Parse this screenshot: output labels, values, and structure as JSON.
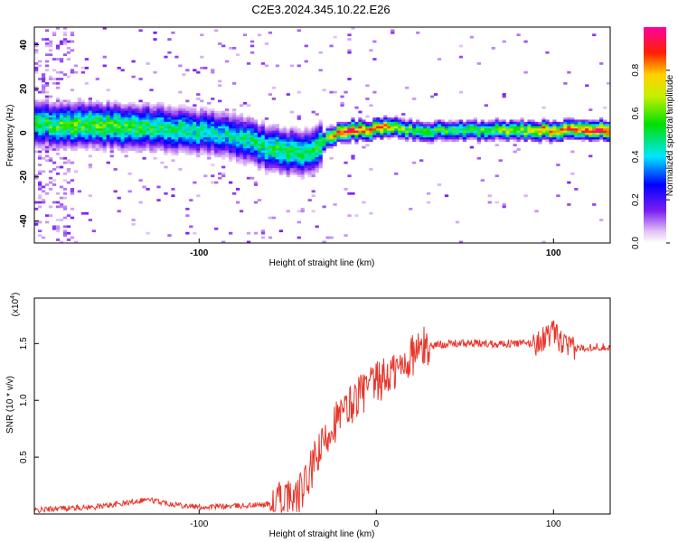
{
  "title": "C2E3.2024.345.10.22.E26",
  "chart_data": [
    {
      "type": "heatmap",
      "title": "C2E3.2024.345.10.22.E26",
      "xlabel": "Height of straight line (km)",
      "ylabel": "Frequency (Hz)",
      "xlim": [
        -193,
        132
      ],
      "ylim": [
        -50,
        48
      ],
      "xticks": [
        -100,
        100
      ],
      "yticks": [
        -40,
        -20,
        0,
        20,
        40
      ],
      "colorbar": {
        "label": "Normalized spectral amplitude",
        "range": [
          0,
          1
        ],
        "ticks": [
          "0.0",
          "0.2",
          "0.4",
          "0.6",
          "0.8"
        ],
        "colormap": "rainbow (white-violet-blue-cyan-green-yellow-red-magenta)"
      },
      "ridge": {
        "x": [
          -193,
          -170,
          -150,
          -130,
          -110,
          -95,
          -85,
          -75,
          -65,
          -55,
          -45,
          -38,
          -32,
          -25,
          -18,
          -10,
          -5,
          0,
          5,
          10,
          20,
          40,
          60,
          80,
          100,
          132
        ],
        "center_freq": [
          4,
          3.5,
          3,
          2.5,
          1.5,
          0,
          -1,
          -3,
          -6,
          -8,
          -9,
          -9,
          -5,
          -1,
          1,
          1,
          1,
          2,
          3,
          2,
          1,
          1,
          1,
          1,
          1,
          1
        ],
        "amplitude": [
          0.55,
          0.6,
          0.6,
          0.55,
          0.5,
          0.45,
          0.45,
          0.5,
          0.5,
          0.55,
          0.55,
          0.5,
          0.55,
          0.8,
          0.95,
          0.95,
          0.9,
          0.95,
          0.9,
          0.7,
          0.6,
          0.55,
          0.6,
          0.7,
          0.85,
          0.95
        ]
      }
    },
    {
      "type": "line",
      "xlabel": "Height of straight line (km)",
      "ylabel": "SNR (10 * v/v)",
      "multiplier": "(x10",
      "multiplier_exp": "4",
      "xlim": [
        -193,
        132
      ],
      "ylim": [
        0,
        1.9
      ],
      "xticks": [
        -100,
        0,
        100
      ],
      "yticks": [
        0.5,
        1.0,
        1.5
      ],
      "ytick_labels": [
        "0.5",
        "1.0",
        "1.5"
      ],
      "series": [
        {
          "color": "#e8352a",
          "x": [
            -193,
            -180,
            -160,
            -140,
            -130,
            -120,
            -100,
            -80,
            -65,
            -55,
            -45,
            -40,
            -35,
            -30,
            -25,
            -20,
            -15,
            -10,
            -5,
            0,
            5,
            10,
            15,
            20,
            25,
            30,
            40,
            50,
            60,
            70,
            80,
            90,
            95,
            100,
            105,
            110,
            120,
            132
          ],
          "y": [
            0.03,
            0.05,
            0.06,
            0.1,
            0.13,
            0.1,
            0.06,
            0.07,
            0.08,
            0.1,
            0.14,
            0.25,
            0.45,
            0.6,
            0.8,
            0.85,
            0.95,
            1.05,
            1.1,
            1.15,
            1.2,
            1.25,
            1.3,
            1.4,
            1.45,
            1.48,
            1.5,
            1.5,
            1.5,
            1.5,
            1.5,
            1.5,
            1.55,
            1.6,
            1.5,
            1.45,
            1.47,
            1.47
          ]
        }
      ]
    }
  ]
}
